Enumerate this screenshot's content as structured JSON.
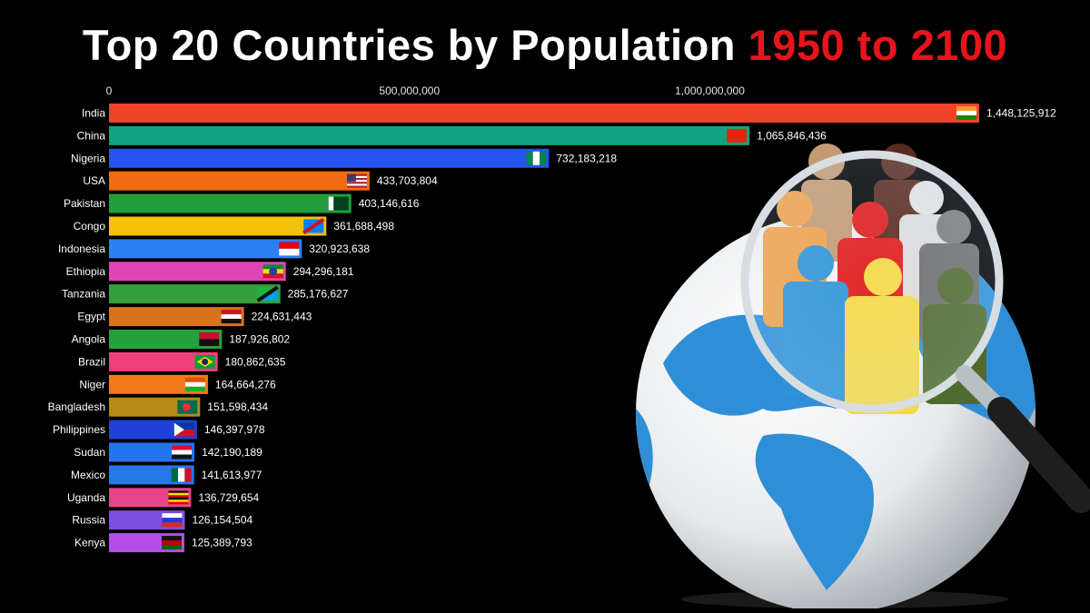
{
  "title": {
    "main": "Top 20 Countries by Population",
    "highlight": "1950 to 2100"
  },
  "chart_data": {
    "type": "bar",
    "orientation": "horizontal",
    "xlim": [
      0,
      1448125912
    ],
    "x_ticks": [
      0,
      500000000,
      1000000000
    ],
    "x_tick_labels": [
      "0",
      "500,000,000",
      "1,000,000,000"
    ],
    "grid": false,
    "legend": "none",
    "series": [
      {
        "categories": [
          "India",
          "China",
          "Nigeria",
          "USA",
          "Pakistan",
          "Congo",
          "Indonesia",
          "Ethiopia",
          "Tanzania",
          "Egypt",
          "Angola",
          "Brazil",
          "Niger",
          "Bangladesh",
          "Philippines",
          "Sudan",
          "Mexico",
          "Uganda",
          "Russia",
          "Kenya"
        ],
        "values": [
          1448125912,
          1065846436,
          732183218,
          433703804,
          403146616,
          361688498,
          320923638,
          294296181,
          285176627,
          224631443,
          187926802,
          180862635,
          164664276,
          151598434,
          146397978,
          142190189,
          141613977,
          136729654,
          126154504,
          125389793
        ],
        "value_labels": [
          "1,448,125,912",
          "1,065,846,436",
          "732,183,218",
          "433,703,804",
          "403,146,616",
          "361,688,498",
          "320,923,638",
          "294,296,181",
          "285,176,627",
          "224,631,443",
          "187,926,802",
          "180,862,635",
          "164,664,276",
          "151,598,434",
          "146,397,978",
          "142,190,189",
          "141,613,977",
          "136,729,654",
          "126,154,504",
          "125,389,793"
        ],
        "colors": [
          "#f0432a",
          "#13a381",
          "#2554f0",
          "#f26a12",
          "#1f9e3a",
          "#f6c109",
          "#2e7ff2",
          "#de45b8",
          "#34a03c",
          "#d9721c",
          "#24a33c",
          "#f0407a",
          "#f27b18",
          "#b58a1a",
          "#1e3fd8",
          "#2474f0",
          "#2677e8",
          "#e8448a",
          "#7c4fe0",
          "#b54ee8"
        ],
        "flags": [
          "india-flag-icon",
          "china-flag-icon",
          "nigeria-flag-icon",
          "usa-flag-icon",
          "pakistan-flag-icon",
          "congo-flag-icon",
          "indonesia-flag-icon",
          "ethiopia-flag-icon",
          "tanzania-flag-icon",
          "egypt-flag-icon",
          "angola-flag-icon",
          "brazil-flag-icon",
          "niger-flag-icon",
          "bangladesh-flag-icon",
          "philippines-flag-icon",
          "sudan-flag-icon",
          "mexico-flag-icon",
          "uganda-flag-icon",
          "russia-flag-icon",
          "kenya-flag-icon"
        ]
      }
    ]
  },
  "illustration": "globe-magnifier-people-icon",
  "colors": {
    "background": "#000000",
    "title": "#ffffff",
    "highlight": "#e8141c"
  }
}
